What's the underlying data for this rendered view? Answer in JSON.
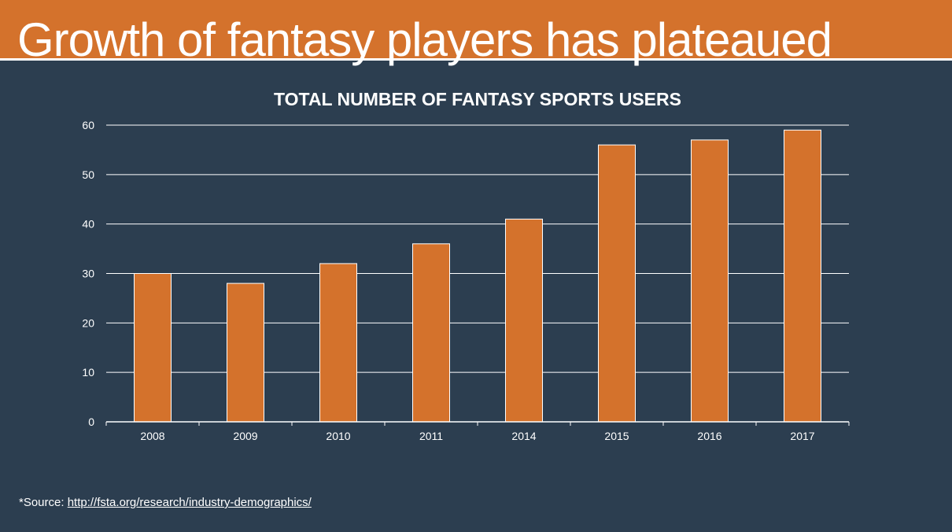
{
  "slide": {
    "title": "Growth of fantasy players has plateaued",
    "source_prefix": "*Source: ",
    "source_link": "http://fsta.org/research/industry-demographics/"
  },
  "colors": {
    "banner": "#d4722c",
    "background": "#2c3e50",
    "bar": "#d4722c",
    "text": "#ffffff"
  },
  "chart_data": {
    "type": "bar",
    "title": "TOTAL NUMBER OF FANTASY SPORTS USERS",
    "categories": [
      "2008",
      "2009",
      "2010",
      "2011",
      "2014",
      "2015",
      "2016",
      "2017"
    ],
    "values": [
      30,
      28,
      32,
      36,
      41,
      56,
      57,
      59
    ],
    "ylim": [
      0,
      60
    ],
    "yticks": [
      "0",
      "10",
      "20",
      "30",
      "40",
      "50",
      "60"
    ],
    "grid": true,
    "legend": "none",
    "xlabel": "",
    "ylabel": ""
  }
}
